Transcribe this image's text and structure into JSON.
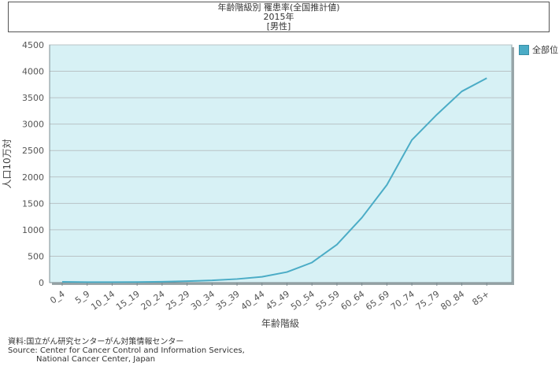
{
  "chart_data": {
    "type": "line",
    "title": "年齢階級別 罹患率(全国推計値)",
    "subtitle": "2015年",
    "subtitle2": "[男性]",
    "xlabel": "年齢階級",
    "ylabel": "人口10万対",
    "categories": [
      "0_4",
      "5_9",
      "10_14",
      "15_19",
      "20_24",
      "25_29",
      "30_34",
      "35_39",
      "40_44",
      "45_49",
      "50_54",
      "55_59",
      "60_64",
      "65_69",
      "70_74",
      "75_79",
      "80_84",
      "85+"
    ],
    "series": [
      {
        "name": "全部位",
        "values": [
          15,
          10,
          10,
          12,
          17,
          28,
          42,
          68,
          110,
          200,
          380,
          720,
          1230,
          1850,
          2700,
          3180,
          3620,
          3870
        ]
      }
    ],
    "yticks": [
      0,
      500,
      1000,
      1500,
      2000,
      2500,
      3000,
      3500,
      4000,
      4500
    ],
    "ylim": [
      0,
      4500
    ],
    "grid": true,
    "legend_position": "right",
    "colors": {
      "line": "#4bacc6",
      "plot_bg": "#d7f1f5",
      "grid": "#b9c3c6"
    }
  },
  "source": {
    "line1": "資料:国立がん研究センターがん対策情報センター",
    "line2": "Source: Center for Cancer Control and Information Services,",
    "line3": "National Cancer Center, Japan"
  }
}
